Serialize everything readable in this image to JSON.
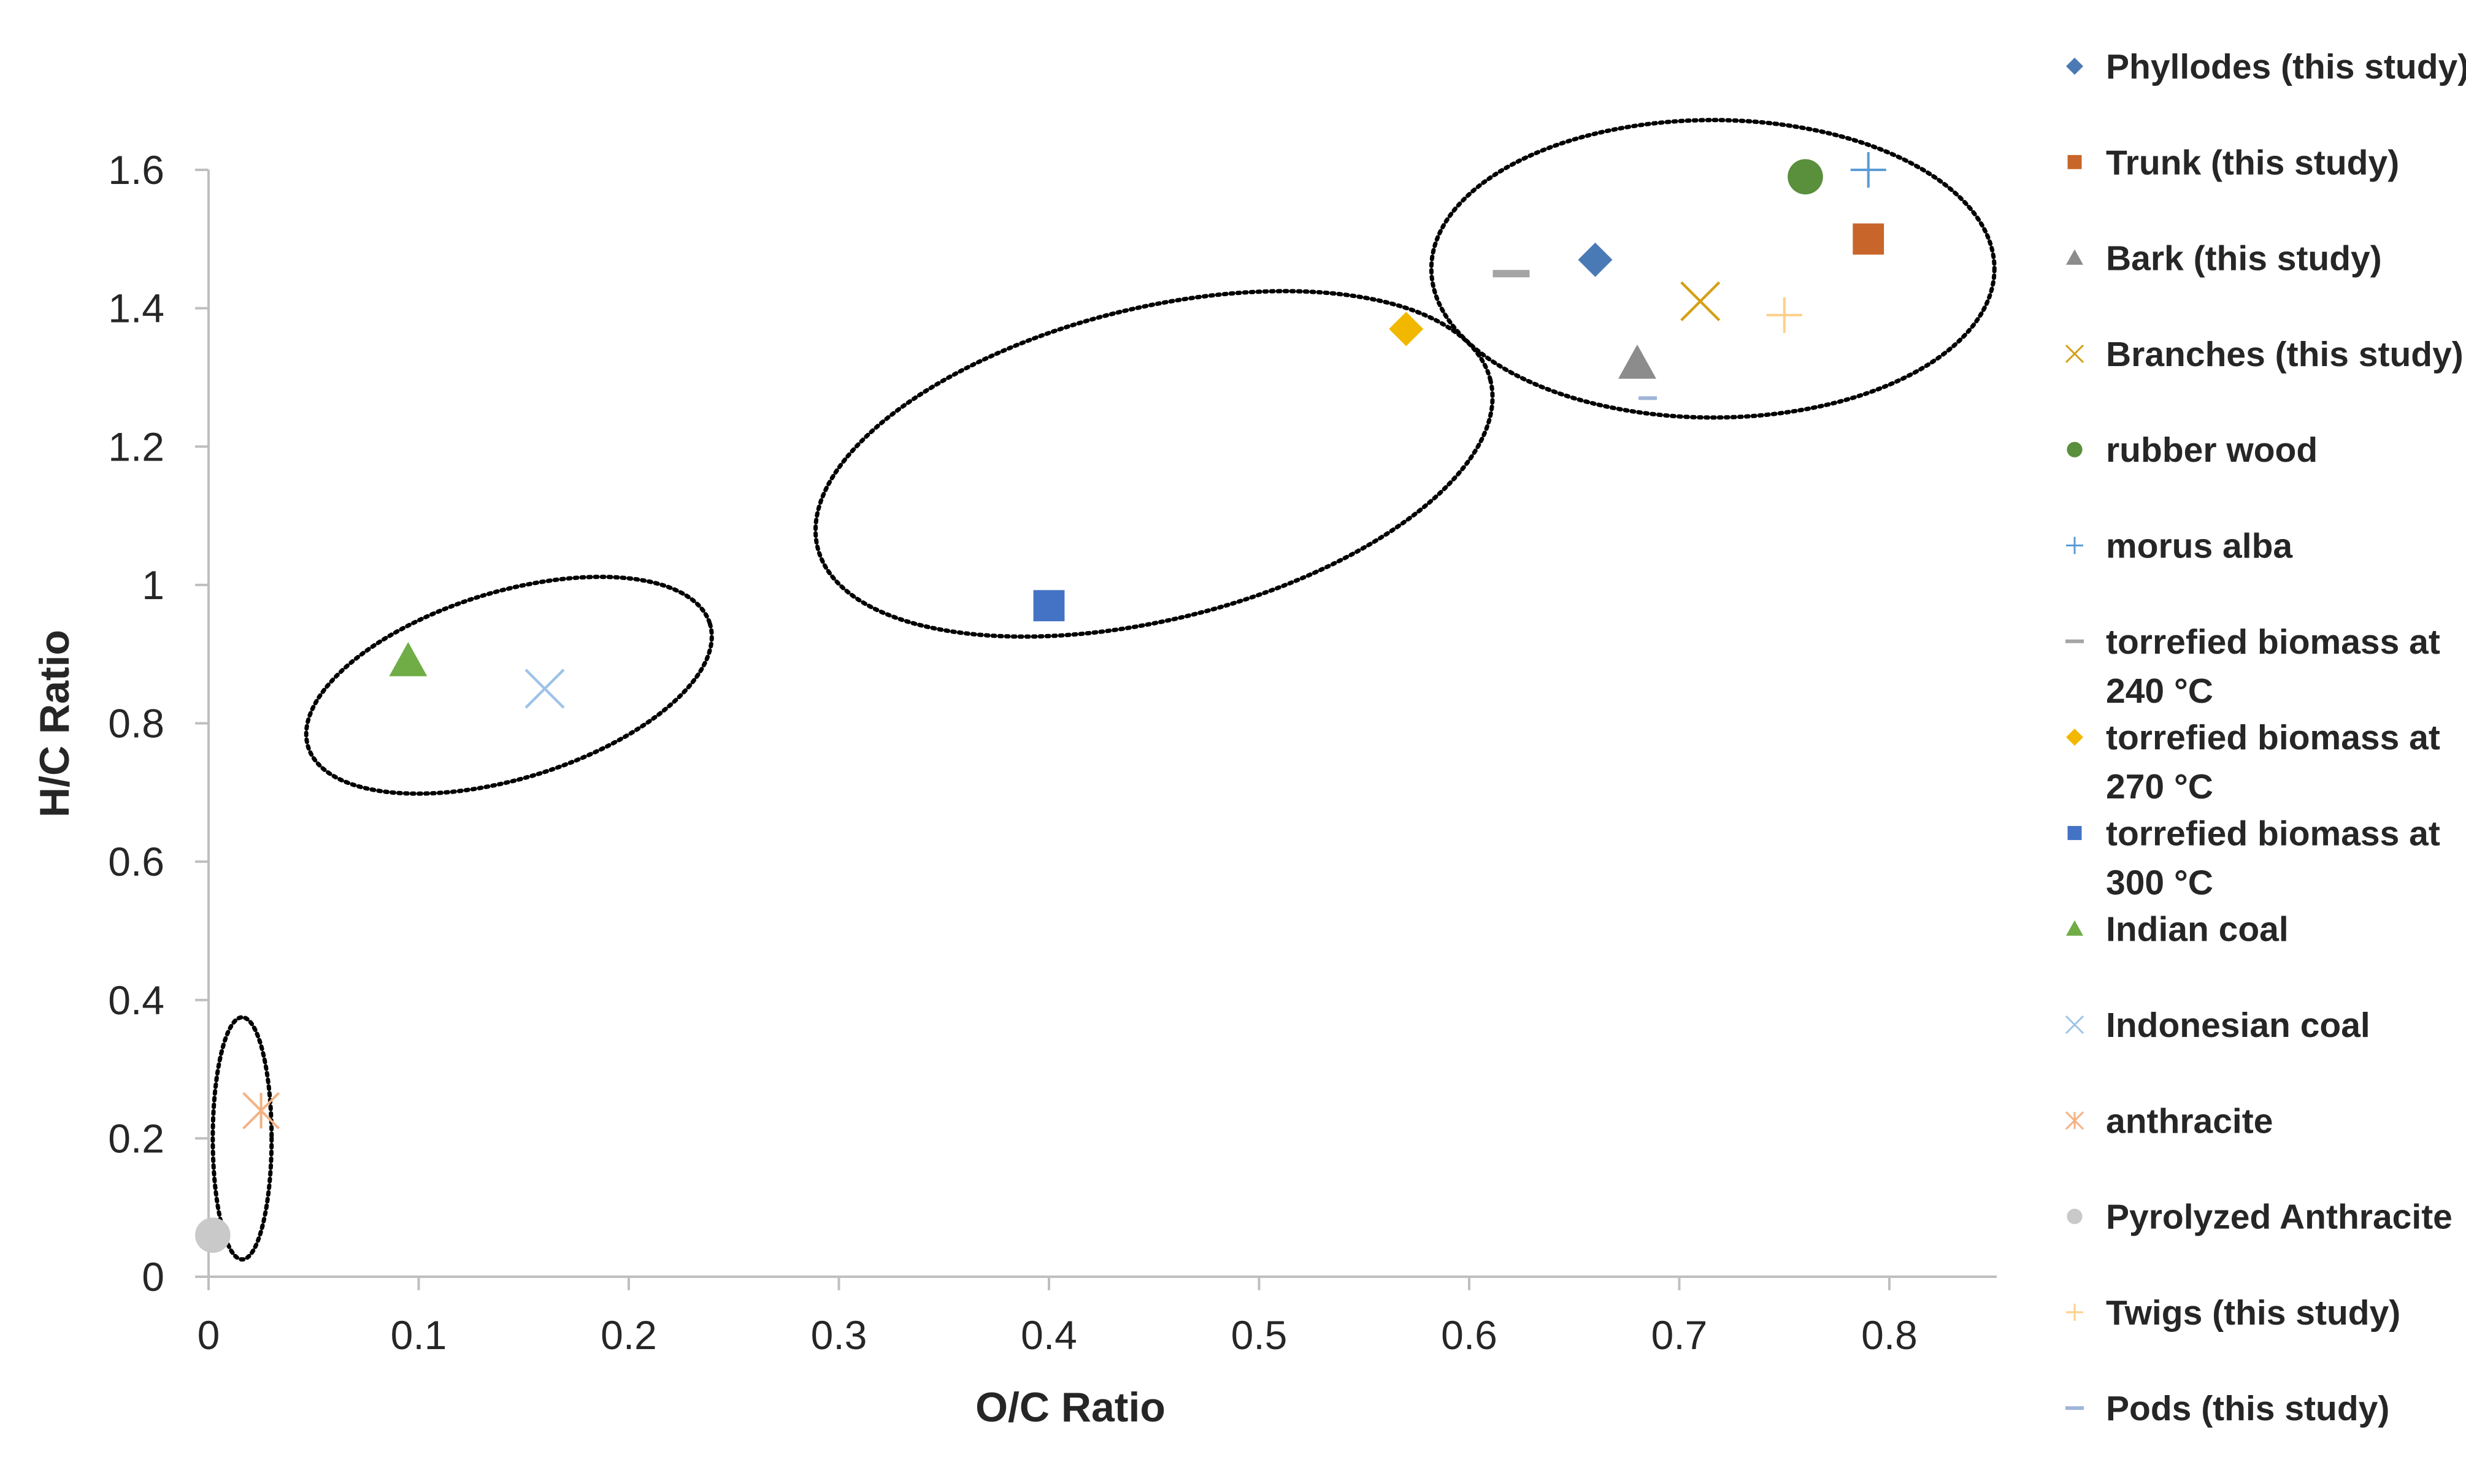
{
  "chart_data": {
    "type": "scatter",
    "xlabel": "O/C Ratio",
    "ylabel": "H/C Ratio",
    "xlim": [
      0,
      0.85
    ],
    "ylim": [
      0,
      1.6
    ],
    "xticks": [
      "0",
      "0.1",
      "0.2",
      "0.3",
      "0.4",
      "0.5",
      "0.6",
      "0.7",
      "0.8"
    ],
    "yticks": [
      "0",
      "0.2",
      "0.4",
      "0.6",
      "0.8",
      "1",
      "1.2",
      "1.4",
      "1.6"
    ],
    "legend_position": "right",
    "grid": false,
    "series": [
      {
        "name": "Phyllodes (this study)",
        "marker": "diamond",
        "color": "#4a7ab5",
        "points": [
          [
            0.66,
            1.47
          ]
        ]
      },
      {
        "name": "Trunk (this study)",
        "marker": "square",
        "color": "#c8652a",
        "points": [
          [
            0.79,
            1.5
          ]
        ]
      },
      {
        "name": "Bark (this study)",
        "marker": "triangle",
        "color": "#8c8c8c",
        "points": [
          [
            0.68,
            1.32
          ]
        ]
      },
      {
        "name": "Branches (this study)",
        "marker": "x",
        "color": "#d4a017",
        "points": [
          [
            0.71,
            1.41
          ]
        ]
      },
      {
        "name": "rubber wood",
        "marker": "circle",
        "color": "#5a8f3c",
        "points": [
          [
            0.76,
            1.59
          ]
        ]
      },
      {
        "name": "morus alba",
        "marker": "plus",
        "color": "#5b9bd5",
        "points": [
          [
            0.79,
            1.6
          ]
        ]
      },
      {
        "name": "torrefied biomass at 240 °C",
        "marker": "dash",
        "color": "#a5a5a5",
        "points": [
          [
            0.62,
            1.45
          ]
        ]
      },
      {
        "name": "torrefied biomass at 270 °C",
        "marker": "diamond",
        "color": "#f2b800",
        "points": [
          [
            0.57,
            1.37
          ]
        ]
      },
      {
        "name": "torrefied biomass at 300 °C",
        "marker": "square",
        "color": "#4472c4",
        "points": [
          [
            0.4,
            0.97
          ]
        ]
      },
      {
        "name": "Indian coal",
        "marker": "triangle",
        "color": "#70ad47",
        "points": [
          [
            0.095,
            0.89
          ]
        ]
      },
      {
        "name": "Indonesian coal",
        "marker": "x",
        "color": "#9dc3e6",
        "points": [
          [
            0.16,
            0.85
          ]
        ]
      },
      {
        "name": "anthracite",
        "marker": "star",
        "color": "#f4b183",
        "points": [
          [
            0.025,
            0.24
          ]
        ]
      },
      {
        "name": "Pyrolyzed Anthracite",
        "marker": "circle",
        "color": "#c9c9c9",
        "points": [
          [
            0.002,
            0.06
          ]
        ]
      },
      {
        "name": "Twigs (this study)",
        "marker": "plus",
        "color": "#ffd08a",
        "points": [
          [
            0.75,
            1.39
          ]
        ]
      },
      {
        "name": "Pods (this study)",
        "marker": "dash",
        "color": "#9fb4d8",
        "points": [
          [
            0.685,
            1.27
          ]
        ]
      }
    ],
    "annotations": [
      {
        "type": "ellipse",
        "cx": 0.016,
        "cy": 0.2,
        "rx": 0.014,
        "ry": 0.175,
        "angle": 0
      },
      {
        "type": "ellipse",
        "cx": 0.143,
        "cy": 0.855,
        "rx": 0.1,
        "ry": 0.135,
        "angle": -17
      },
      {
        "type": "ellipse",
        "cx": 0.45,
        "cy": 1.175,
        "rx": 0.165,
        "ry": 0.225,
        "angle": -14
      },
      {
        "type": "ellipse",
        "cx": 0.716,
        "cy": 1.457,
        "rx": 0.134,
        "ry": 0.215,
        "angle": 0
      }
    ]
  }
}
